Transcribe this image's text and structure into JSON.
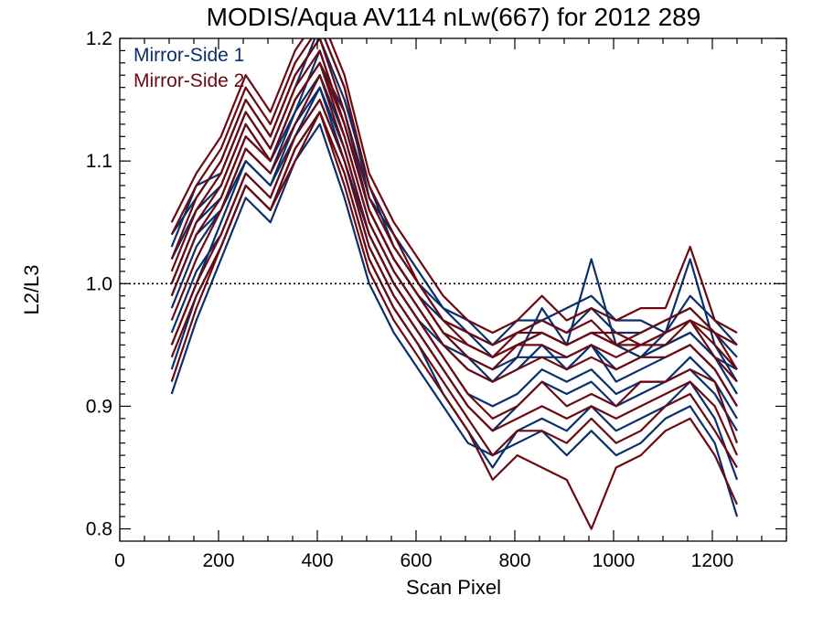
{
  "chart_data": {
    "type": "line",
    "title": "MODIS/Aqua AV114 nLw(667) for 2012 289",
    "xlabel": "Scan Pixel",
    "ylabel": "L2/L3",
    "xlim": [
      0,
      1350
    ],
    "ylim": [
      0.79,
      1.2
    ],
    "x_ticks": [
      0,
      200,
      400,
      600,
      800,
      1000,
      1200
    ],
    "x_tick_labels": [
      "0",
      "200",
      "400",
      "600",
      "800",
      "1000",
      "1200"
    ],
    "y_ticks": [
      0.8,
      0.9,
      1.0,
      1.1,
      1.2
    ],
    "y_tick_labels": [
      "0.8",
      "0.9",
      "1.0",
      "1.1",
      "1.2"
    ],
    "reference_line": {
      "y": 1.0,
      "style": "dotted"
    },
    "grid": false,
    "legend_position": "top-left",
    "legend": [
      {
        "label": "Mirror-Side 1",
        "color": "#0b2f6b"
      },
      {
        "label": "Mirror-Side 2",
        "color": "#6b0a12"
      }
    ],
    "x": [
      105,
      155,
      205,
      255,
      305,
      355,
      405,
      455,
      505,
      555,
      605,
      655,
      705,
      755,
      805,
      855,
      905,
      955,
      1005,
      1055,
      1105,
      1155,
      1205,
      1250
    ],
    "series": [
      {
        "group": "Mirror-Side 1",
        "color": "#0b2f6b",
        "values": [
          1.02,
          1.06,
          1.08,
          1.13,
          1.1,
          1.15,
          1.18,
          1.14,
          1.06,
          1.02,
          0.99,
          0.97,
          0.96,
          0.94,
          0.95,
          0.96,
          0.95,
          0.96,
          0.95,
          0.94,
          0.95,
          0.96,
          0.94,
          0.93
        ]
      },
      {
        "group": "Mirror-Side 1",
        "color": "#0b2f6b",
        "values": [
          0.95,
          1.0,
          1.05,
          1.1,
          1.08,
          1.12,
          1.16,
          1.1,
          1.03,
          0.99,
          0.96,
          0.93,
          0.9,
          0.88,
          0.9,
          0.92,
          0.91,
          0.92,
          0.9,
          0.91,
          0.92,
          0.93,
          0.91,
          0.88
        ]
      },
      {
        "group": "Mirror-Side 1",
        "color": "#0b2f6b",
        "values": [
          1.04,
          1.07,
          1.1,
          1.15,
          1.12,
          1.17,
          1.2,
          1.15,
          1.08,
          1.03,
          1.0,
          0.98,
          0.96,
          0.95,
          0.96,
          0.97,
          0.98,
          0.99,
          0.97,
          0.97,
          0.96,
          0.99,
          0.97,
          0.95
        ]
      },
      {
        "group": "Mirror-Side 1",
        "color": "#0b2f6b",
        "values": [
          0.91,
          0.97,
          1.02,
          1.07,
          1.05,
          1.1,
          1.13,
          1.07,
          1.0,
          0.96,
          0.93,
          0.9,
          0.87,
          0.86,
          0.87,
          0.88,
          0.86,
          0.88,
          0.86,
          0.87,
          0.89,
          0.9,
          0.87,
          0.81
        ]
      },
      {
        "group": "Mirror-Side 1",
        "color": "#0b2f6b",
        "values": [
          0.98,
          1.03,
          1.06,
          1.11,
          1.09,
          1.14,
          1.17,
          1.12,
          1.05,
          1.01,
          0.98,
          0.95,
          0.93,
          0.92,
          0.93,
          0.95,
          0.93,
          0.95,
          0.92,
          0.93,
          0.94,
          0.95,
          0.93,
          0.9
        ]
      },
      {
        "group": "Mirror-Side 1",
        "color": "#0b2f6b",
        "values": [
          1.0,
          1.05,
          1.07,
          1.12,
          1.1,
          1.14,
          1.19,
          1.13,
          1.06,
          1.02,
          0.99,
          0.96,
          0.94,
          0.93,
          0.94,
          0.98,
          0.95,
          1.02,
          0.95,
          0.94,
          0.96,
          1.02,
          0.95,
          0.92
        ]
      },
      {
        "group": "Mirror-Side 1",
        "color": "#0b2f6b",
        "values": [
          0.93,
          0.99,
          1.03,
          1.08,
          1.06,
          1.11,
          1.14,
          1.09,
          1.02,
          0.98,
          0.95,
          0.91,
          0.88,
          0.85,
          0.88,
          0.89,
          0.88,
          0.9,
          0.88,
          0.89,
          0.9,
          0.92,
          0.89,
          0.84
        ]
      },
      {
        "group": "Mirror-Side 1",
        "color": "#0b2f6b",
        "values": [
          1.03,
          1.08,
          1.09,
          1.14,
          1.11,
          1.16,
          1.21,
          1.16,
          1.07,
          1.04,
          1.01,
          0.98,
          0.97,
          0.95,
          0.97,
          0.97,
          0.96,
          0.98,
          0.96,
          0.96,
          0.97,
          0.98,
          0.96,
          0.94
        ]
      },
      {
        "group": "Mirror-Side 1",
        "color": "#0b2f6b",
        "values": [
          0.96,
          1.01,
          1.04,
          1.09,
          1.07,
          1.12,
          1.15,
          1.1,
          1.04,
          1.0,
          0.97,
          0.94,
          0.91,
          0.9,
          0.91,
          0.93,
          0.92,
          0.93,
          0.91,
          0.92,
          0.92,
          0.94,
          0.92,
          0.89
        ]
      },
      {
        "group": "Mirror-Side 1",
        "color": "#0b2f6b",
        "values": [
          0.99,
          1.04,
          1.06,
          1.1,
          1.08,
          1.13,
          1.16,
          1.11,
          1.04,
          1.0,
          0.97,
          0.95,
          0.94,
          0.92,
          0.94,
          0.94,
          0.94,
          0.95,
          0.93,
          0.94,
          0.95,
          0.96,
          0.94,
          0.91
        ]
      },
      {
        "group": "Mirror-Side 2",
        "color": "#6b0a12",
        "values": [
          1.04,
          1.08,
          1.11,
          1.16,
          1.13,
          1.18,
          1.21,
          1.16,
          1.08,
          1.04,
          1.0,
          0.97,
          0.95,
          0.94,
          0.96,
          0.96,
          0.95,
          0.96,
          0.96,
          0.95,
          0.96,
          0.97,
          0.96,
          0.93
        ]
      },
      {
        "group": "Mirror-Side 2",
        "color": "#6b0a12",
        "values": [
          0.97,
          1.02,
          1.06,
          1.11,
          1.09,
          1.13,
          1.17,
          1.11,
          1.04,
          1.0,
          0.97,
          0.94,
          0.91,
          0.89,
          0.9,
          0.92,
          0.9,
          0.91,
          0.9,
          0.92,
          0.92,
          0.93,
          0.92,
          0.87
        ]
      },
      {
        "group": "Mirror-Side 2",
        "color": "#6b0a12",
        "values": [
          1.01,
          1.06,
          1.09,
          1.14,
          1.11,
          1.16,
          1.19,
          1.13,
          1.06,
          1.02,
          0.99,
          0.96,
          0.94,
          0.93,
          0.95,
          0.95,
          0.94,
          0.95,
          0.94,
          0.95,
          0.95,
          0.97,
          0.94,
          0.92
        ]
      },
      {
        "group": "Mirror-Side 2",
        "color": "#6b0a12",
        "values": [
          0.92,
          0.98,
          1.03,
          1.08,
          1.06,
          1.1,
          1.14,
          1.08,
          1.01,
          0.97,
          0.94,
          0.91,
          0.88,
          0.84,
          0.86,
          0.85,
          0.84,
          0.8,
          0.85,
          0.86,
          0.88,
          0.89,
          0.86,
          0.82
        ]
      },
      {
        "group": "Mirror-Side 2",
        "color": "#6b0a12",
        "values": [
          1.05,
          1.09,
          1.12,
          1.17,
          1.14,
          1.19,
          1.22,
          1.17,
          1.09,
          1.05,
          1.02,
          0.99,
          0.97,
          0.96,
          0.97,
          0.99,
          0.97,
          0.98,
          0.97,
          0.98,
          0.98,
          1.03,
          0.97,
          0.96
        ]
      },
      {
        "group": "Mirror-Side 2",
        "color": "#6b0a12",
        "values": [
          0.95,
          1.0,
          1.04,
          1.09,
          1.07,
          1.12,
          1.15,
          1.1,
          1.03,
          0.99,
          0.96,
          0.93,
          0.9,
          0.88,
          0.89,
          0.9,
          0.89,
          0.9,
          0.89,
          0.9,
          0.91,
          0.92,
          0.9,
          0.86
        ]
      },
      {
        "group": "Mirror-Side 2",
        "color": "#6b0a12",
        "values": [
          0.99,
          1.04,
          1.07,
          1.12,
          1.1,
          1.15,
          1.18,
          1.12,
          1.05,
          1.01,
          0.98,
          0.95,
          0.93,
          0.92,
          0.93,
          0.94,
          0.93,
          0.94,
          0.93,
          0.94,
          0.94,
          0.95,
          0.93,
          0.9
        ]
      },
      {
        "group": "Mirror-Side 2",
        "color": "#6b0a12",
        "values": [
          1.02,
          1.07,
          1.1,
          1.15,
          1.12,
          1.17,
          1.2,
          1.14,
          1.07,
          1.03,
          1.0,
          0.97,
          0.96,
          0.95,
          0.96,
          0.97,
          0.96,
          0.97,
          0.95,
          0.96,
          0.97,
          0.98,
          0.96,
          0.95
        ]
      },
      {
        "group": "Mirror-Side 2",
        "color": "#6b0a12",
        "values": [
          0.94,
          0.99,
          1.03,
          1.08,
          1.06,
          1.11,
          1.14,
          1.09,
          1.02,
          0.98,
          0.95,
          0.92,
          0.89,
          0.86,
          0.88,
          0.88,
          0.87,
          0.89,
          0.87,
          0.88,
          0.9,
          0.91,
          0.88,
          0.85
        ]
      },
      {
        "group": "Mirror-Side 2",
        "color": "#6b0a12",
        "values": [
          1.0,
          1.05,
          1.08,
          1.13,
          1.1,
          1.15,
          1.18,
          1.13,
          1.06,
          1.02,
          0.99,
          0.96,
          0.95,
          0.94,
          0.95,
          0.96,
          0.95,
          0.96,
          0.95,
          0.95,
          0.96,
          0.97,
          0.95,
          0.93
        ]
      }
    ]
  }
}
